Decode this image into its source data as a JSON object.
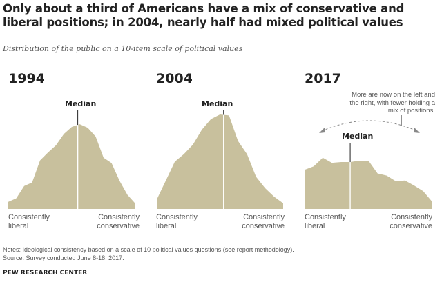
{
  "title": "Only about a third of Americans have a mix of conservative and liberal positions; in 2004, nearly half had mixed political values",
  "subtitle": "Distribution of the public on a 10-item scale of political values",
  "annotation": "More are now on the left and the right, with fewer holding a mix of positions.",
  "notes": "Notes: Ideological consistency based on a scale of 10 political values questions (see report methodology).",
  "source": "Source: Survey conducted June 8-18, 2017.",
  "brand": "PEW RESEARCH CENTER",
  "colors": {
    "area": "#c8c09d",
    "text": "#222222",
    "muted": "#555555"
  },
  "chart_data": [
    {
      "type": "area",
      "title": "1994",
      "median_label": "Median",
      "xlabel_left": "Consistently liberal",
      "xlabel_right": "Consistently conservative",
      "y": [
        0.08,
        0.12,
        0.26,
        0.3,
        0.55,
        0.64,
        0.72,
        0.85,
        0.93,
        0.96,
        0.92,
        0.82,
        0.58,
        0.52,
        0.32,
        0.16,
        0.06
      ],
      "median_index": 8.75,
      "ylim": [
        0,
        1
      ]
    },
    {
      "type": "area",
      "title": "2004",
      "median_label": "Median",
      "xlabel_left": "Consistently liberal",
      "xlabel_right": "Consistently conservative",
      "y": [
        0.1,
        0.3,
        0.5,
        0.58,
        0.68,
        0.84,
        0.95,
        1.0,
        0.99,
        0.72,
        0.58,
        0.34,
        0.22,
        0.13,
        0.06
      ],
      "median_index": 7.4,
      "ylim": [
        0,
        1
      ]
    },
    {
      "type": "area",
      "title": "2017",
      "median_label": "Median",
      "xlabel_left": "Consistently liberal",
      "xlabel_right": "Consistently conservative",
      "y": [
        0.55,
        0.6,
        0.72,
        0.65,
        0.66,
        0.66,
        0.68,
        0.68,
        0.5,
        0.47,
        0.39,
        0.4,
        0.33,
        0.25,
        0.1
      ],
      "median_index": 5.0,
      "ylim": [
        0,
        1
      ]
    }
  ]
}
